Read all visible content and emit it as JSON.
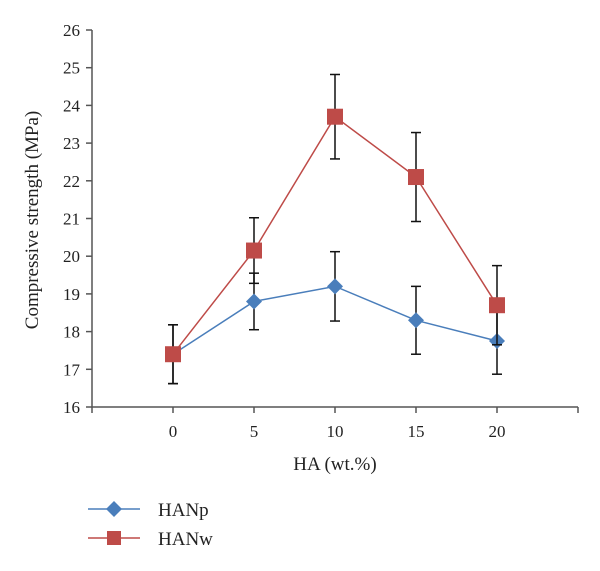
{
  "chart_data": {
    "type": "line",
    "title": "",
    "xlabel": "HA (wt.%)",
    "ylabel": "Compressive strength (MPa)",
    "x": [
      0,
      5,
      10,
      15,
      20
    ],
    "xticks": [
      "0",
      "5",
      "10",
      "15",
      "20"
    ],
    "yticks": [
      "16",
      "17",
      "18",
      "19",
      "20",
      "21",
      "22",
      "23",
      "24",
      "25",
      "26"
    ],
    "ylim": [
      16,
      26
    ],
    "grid": false,
    "legend_position": "bottom-left",
    "series": [
      {
        "name": "HANp",
        "marker": "diamond",
        "color": "#4a7ebb",
        "values": [
          17.4,
          18.8,
          19.2,
          18.3,
          17.75
        ],
        "error": [
          0.78,
          0.75,
          0.92,
          0.9,
          0.88
        ]
      },
      {
        "name": "HANw",
        "marker": "square",
        "color": "#be4b48",
        "values": [
          17.4,
          20.15,
          23.7,
          22.1,
          18.7
        ],
        "error": [
          0.78,
          0.87,
          1.12,
          1.18,
          1.05
        ]
      }
    ]
  }
}
